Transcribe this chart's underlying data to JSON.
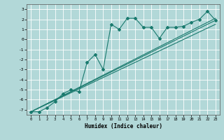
{
  "xlabel": "Humidex (Indice chaleur)",
  "ylabel": "",
  "bg_color": "#b2d8d8",
  "grid_color": "#ffffff",
  "line_color": "#1a7a6e",
  "xlim": [
    -0.5,
    23.5
  ],
  "ylim": [
    -7.5,
    3.5
  ],
  "xticks": [
    0,
    1,
    2,
    3,
    4,
    5,
    6,
    7,
    8,
    9,
    10,
    11,
    12,
    13,
    14,
    15,
    16,
    17,
    18,
    19,
    20,
    21,
    22,
    23
  ],
  "yticks": [
    -7,
    -6,
    -5,
    -4,
    -3,
    -2,
    -1,
    0,
    1,
    2,
    3
  ],
  "jagged_x": [
    0,
    1,
    2,
    3,
    4,
    5,
    6,
    7,
    8,
    9,
    10,
    11,
    12,
    13,
    14,
    15,
    16,
    17,
    18,
    19,
    20,
    21,
    22,
    23
  ],
  "jagged_y": [
    -7.2,
    -7.2,
    -6.8,
    -6.2,
    -5.4,
    -5.0,
    -5.2,
    -2.3,
    -1.5,
    -3.0,
    1.5,
    1.0,
    2.1,
    2.1,
    1.2,
    1.2,
    0.1,
    1.2,
    1.2,
    1.3,
    1.7,
    2.0,
    2.8,
    1.9
  ],
  "line1_x": [
    0,
    23
  ],
  "line1_y": [
    -7.2,
    1.9
  ],
  "line2_x": [
    0,
    23
  ],
  "line2_y": [
    -7.2,
    1.5
  ],
  "line3_x": [
    0,
    23
  ],
  "line3_y": [
    -7.2,
    2.1
  ]
}
